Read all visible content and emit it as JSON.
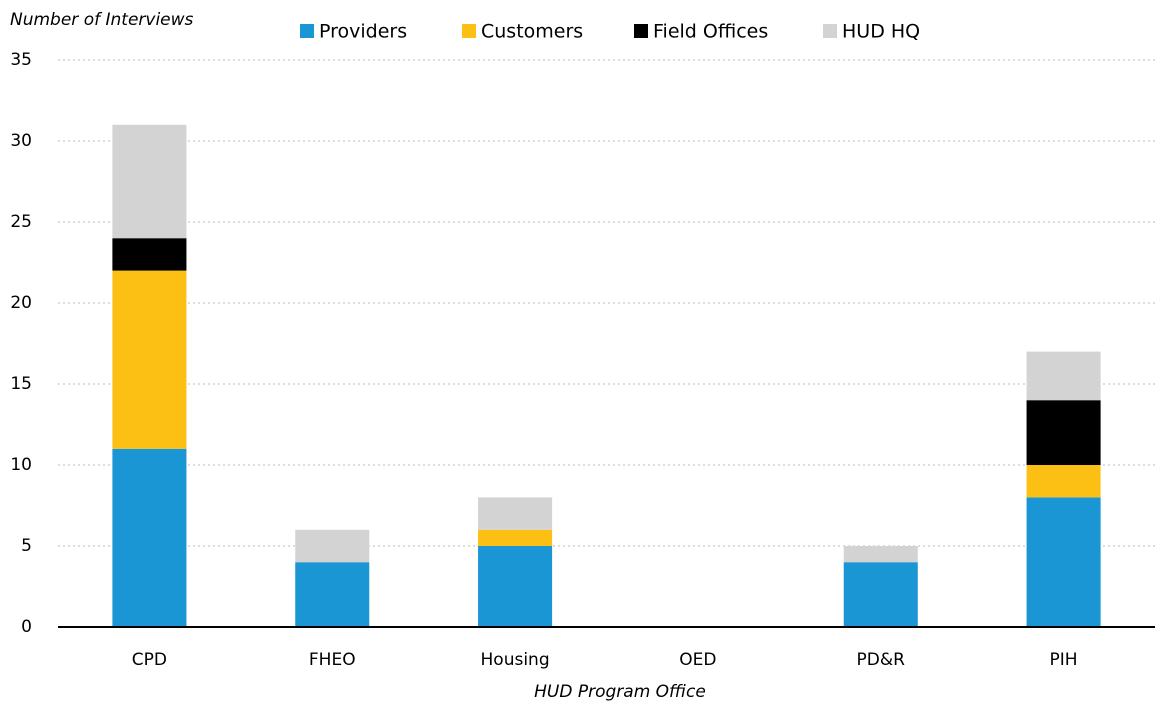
{
  "chart_data": {
    "type": "stacked_bar",
    "y_axis_label": "Number of Interviews",
    "x_axis_label": "HUD Program Office",
    "categories": [
      "CPD",
      "FHEO",
      "Housing",
      "OED",
      "PD&R",
      "PIH"
    ],
    "series": [
      {
        "name": "Providers",
        "color": "#1a96d4",
        "values": [
          11,
          4,
          5,
          0,
          4,
          8
        ]
      },
      {
        "name": "Customers",
        "color": "#fcbf14",
        "values": [
          11,
          0,
          1,
          0,
          0,
          2
        ]
      },
      {
        "name": "Field Offices",
        "color": "#000000",
        "values": [
          2,
          0,
          0,
          0,
          0,
          4
        ]
      },
      {
        "name": "HUD HQ",
        "color": "#d3d3d3",
        "values": [
          7,
          2,
          2,
          0,
          1,
          3
        ]
      }
    ],
    "ylim": [
      0,
      35
    ],
    "yticks": [
      0,
      5,
      10,
      15,
      20,
      25,
      30,
      35
    ],
    "grid": true,
    "legend": "top"
  }
}
